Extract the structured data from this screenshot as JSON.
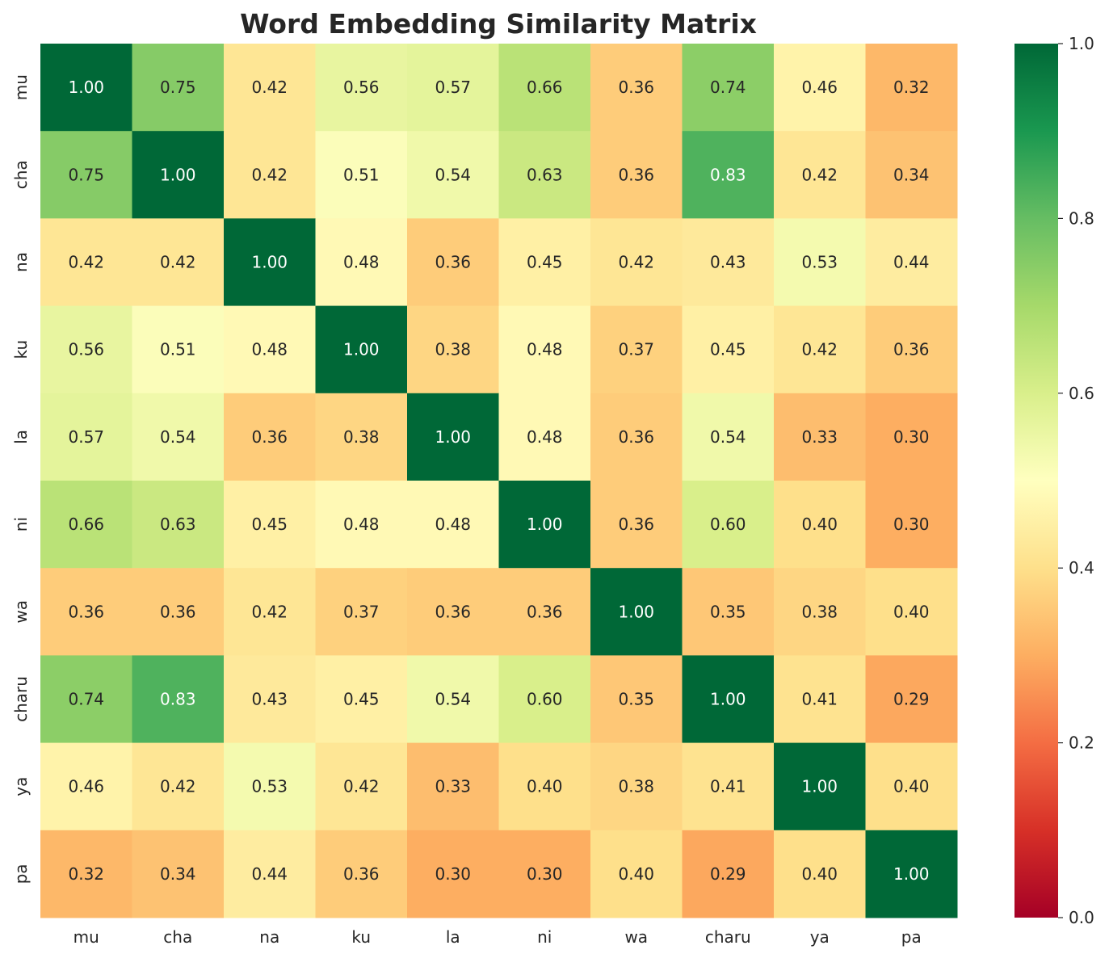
{
  "chart_data": {
    "type": "heatmap",
    "title": "Word Embedding Similarity Matrix",
    "xlabel": "",
    "ylabel": "",
    "x_labels": [
      "mu",
      "cha",
      "na",
      "ku",
      "la",
      "ni",
      "wa",
      "charu",
      "ya",
      "pa"
    ],
    "y_labels": [
      "mu",
      "cha",
      "na",
      "ku",
      "la",
      "ni",
      "wa",
      "charu",
      "ya",
      "pa"
    ],
    "values": [
      [
        1.0,
        0.75,
        0.42,
        0.56,
        0.57,
        0.66,
        0.36,
        0.74,
        0.46,
        0.32
      ],
      [
        0.75,
        1.0,
        0.42,
        0.51,
        0.54,
        0.63,
        0.36,
        0.83,
        0.42,
        0.34
      ],
      [
        0.42,
        0.42,
        1.0,
        0.48,
        0.36,
        0.45,
        0.42,
        0.43,
        0.53,
        0.44
      ],
      [
        0.56,
        0.51,
        0.48,
        1.0,
        0.38,
        0.48,
        0.37,
        0.45,
        0.42,
        0.36
      ],
      [
        0.57,
        0.54,
        0.36,
        0.38,
        1.0,
        0.48,
        0.36,
        0.54,
        0.33,
        0.3
      ],
      [
        0.66,
        0.63,
        0.45,
        0.48,
        0.48,
        1.0,
        0.36,
        0.6,
        0.4,
        0.3
      ],
      [
        0.36,
        0.36,
        0.42,
        0.37,
        0.36,
        0.36,
        1.0,
        0.35,
        0.38,
        0.4
      ],
      [
        0.74,
        0.83,
        0.43,
        0.45,
        0.54,
        0.6,
        0.35,
        1.0,
        0.41,
        0.29
      ],
      [
        0.46,
        0.42,
        0.53,
        0.42,
        0.33,
        0.4,
        0.38,
        0.41,
        1.0,
        0.4
      ],
      [
        0.32,
        0.34,
        0.44,
        0.36,
        0.3,
        0.3,
        0.4,
        0.29,
        0.4,
        1.0
      ]
    ],
    "value_format": "0.00",
    "colormap": "RdYlGn",
    "vmin": 0.0,
    "vmax": 1.0,
    "colorbar_ticks": [
      "0.0",
      "0.2",
      "0.4",
      "0.6",
      "0.8",
      "1.0"
    ],
    "colorbar_position": "right",
    "grid": false
  }
}
